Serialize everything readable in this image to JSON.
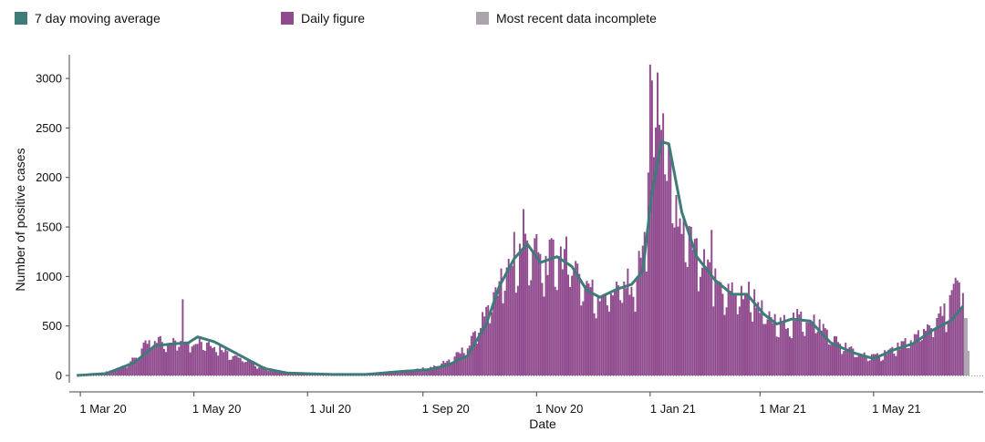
{
  "legend": {
    "items": [
      {
        "label": "7 day moving average",
        "color": "#3e7b79"
      },
      {
        "label": "Daily figure",
        "color": "#8f4a8e"
      },
      {
        "label": "Most recent data incomplete",
        "color": "#aaa5ad"
      }
    ]
  },
  "chart_data": {
    "type": "bar",
    "xlabel": "Date",
    "ylabel": "Number of positive cases",
    "ylim": [
      0,
      3200
    ],
    "yticks": [
      0,
      500,
      1000,
      1500,
      2000,
      2500,
      3000
    ],
    "xtick_labels": [
      "1 Mar 20",
      "1 May 20",
      "1 Jul 20",
      "1 Sep 20",
      "1 Nov 20",
      "1 Jan 21",
      "1 Mar 21",
      "1 May 21"
    ],
    "xtick_dates": [
      "2020-03-01",
      "2020-05-01",
      "2020-07-01",
      "2020-09-01",
      "2020-11-01",
      "2021-01-01",
      "2021-03-01",
      "2021-05-01"
    ],
    "start_date": "2020-02-28",
    "end_date": "2021-06-21",
    "incomplete_days": 3,
    "daily_anchors": [
      [
        "2020-02-28",
        0
      ],
      [
        "2020-03-10",
        10
      ],
      [
        "2020-03-20",
        60
      ],
      [
        "2020-03-30",
        160
      ],
      [
        "2020-04-05",
        300
      ],
      [
        "2020-04-12",
        350
      ],
      [
        "2020-04-20",
        330
      ],
      [
        "2020-04-28",
        340
      ],
      [
        "2020-05-05",
        350
      ],
      [
        "2020-05-15",
        280
      ],
      [
        "2020-05-25",
        180
      ],
      [
        "2020-06-05",
        90
      ],
      [
        "2020-06-15",
        40
      ],
      [
        "2020-07-01",
        20
      ],
      [
        "2020-07-20",
        8
      ],
      [
        "2020-08-01",
        10
      ],
      [
        "2020-08-15",
        30
      ],
      [
        "2020-08-25",
        50
      ],
      [
        "2020-09-05",
        80
      ],
      [
        "2020-09-15",
        150
      ],
      [
        "2020-09-25",
        280
      ],
      [
        "2020-10-03",
        550
      ],
      [
        "2020-10-10",
        850
      ],
      [
        "2020-10-17",
        1050
      ],
      [
        "2020-10-24",
        1250
      ],
      [
        "2020-10-28",
        1320
      ],
      [
        "2020-11-05",
        1080
      ],
      [
        "2020-11-12",
        1220
      ],
      [
        "2020-11-19",
        1150
      ],
      [
        "2020-11-26",
        950
      ],
      [
        "2020-12-03",
        800
      ],
      [
        "2020-12-10",
        820
      ],
      [
        "2020-12-17",
        880
      ],
      [
        "2020-12-24",
        920
      ],
      [
        "2020-12-29",
        1300
      ],
      [
        "2021-01-04",
        2300
      ],
      [
        "2021-01-09",
        2200
      ],
      [
        "2021-01-16",
        1500
      ],
      [
        "2021-01-24",
        1250
      ],
      [
        "2021-02-01",
        1000
      ],
      [
        "2021-02-10",
        850
      ],
      [
        "2021-02-18",
        800
      ],
      [
        "2021-02-24",
        820
      ],
      [
        "2021-03-05",
        560
      ],
      [
        "2021-03-12",
        500
      ],
      [
        "2021-03-20",
        560
      ],
      [
        "2021-03-30",
        560
      ],
      [
        "2021-04-10",
        350
      ],
      [
        "2021-04-20",
        240
      ],
      [
        "2021-05-01",
        180
      ],
      [
        "2021-05-10",
        250
      ],
      [
        "2021-05-20",
        330
      ],
      [
        "2021-05-30",
        480
      ],
      [
        "2021-06-08",
        620
      ],
      [
        "2021-06-14",
        850
      ],
      [
        "2021-06-21",
        720
      ]
    ],
    "daily_spikes": [
      [
        "2020-04-25",
        770
      ],
      [
        "2020-10-25",
        1680
      ],
      [
        "2020-10-20",
        1450
      ],
      [
        "2021-01-01",
        3140
      ],
      [
        "2021-01-02",
        2980
      ],
      [
        "2021-01-05",
        3060
      ],
      [
        "2021-01-06",
        2530
      ],
      [
        "2021-01-07",
        2480
      ],
      [
        "2020-12-31",
        2050
      ],
      [
        "2021-02-03",
        1470
      ],
      [
        "2021-06-15",
        960
      ],
      [
        "2021-06-16",
        940
      ]
    ],
    "moving_average_anchors": [
      [
        "2020-02-28",
        0
      ],
      [
        "2020-03-15",
        20
      ],
      [
        "2020-03-30",
        130
      ],
      [
        "2020-04-10",
        300
      ],
      [
        "2020-04-20",
        320
      ],
      [
        "2020-04-28",
        330
      ],
      [
        "2020-05-03",
        390
      ],
      [
        "2020-05-12",
        340
      ],
      [
        "2020-05-25",
        210
      ],
      [
        "2020-06-08",
        70
      ],
      [
        "2020-06-20",
        25
      ],
      [
        "2020-07-15",
        10
      ],
      [
        "2020-08-01",
        10
      ],
      [
        "2020-08-20",
        40
      ],
      [
        "2020-09-05",
        60
      ],
      [
        "2020-09-15",
        110
      ],
      [
        "2020-09-25",
        200
      ],
      [
        "2020-10-05",
        520
      ],
      [
        "2020-10-12",
        900
      ],
      [
        "2020-10-20",
        1180
      ],
      [
        "2020-10-27",
        1330
      ],
      [
        "2020-11-03",
        1140
      ],
      [
        "2020-11-12",
        1200
      ],
      [
        "2020-11-20",
        1100
      ],
      [
        "2020-11-28",
        860
      ],
      [
        "2020-12-05",
        790
      ],
      [
        "2020-12-14",
        870
      ],
      [
        "2020-12-22",
        920
      ],
      [
        "2020-12-28",
        1050
      ],
      [
        "2021-01-02",
        1850
      ],
      [
        "2021-01-07",
        2360
      ],
      [
        "2021-01-11",
        2340
      ],
      [
        "2021-01-18",
        1650
      ],
      [
        "2021-01-26",
        1200
      ],
      [
        "2021-02-05",
        960
      ],
      [
        "2021-02-14",
        820
      ],
      [
        "2021-02-22",
        820
      ],
      [
        "2021-03-03",
        620
      ],
      [
        "2021-03-10",
        520
      ],
      [
        "2021-03-18",
        570
      ],
      [
        "2021-03-28",
        550
      ],
      [
        "2021-04-08",
        330
      ],
      [
        "2021-04-20",
        230
      ],
      [
        "2021-05-01",
        170
      ],
      [
        "2021-05-12",
        260
      ],
      [
        "2021-05-22",
        320
      ],
      [
        "2021-06-02",
        460
      ],
      [
        "2021-06-12",
        560
      ],
      [
        "2021-06-18",
        700
      ]
    ]
  }
}
